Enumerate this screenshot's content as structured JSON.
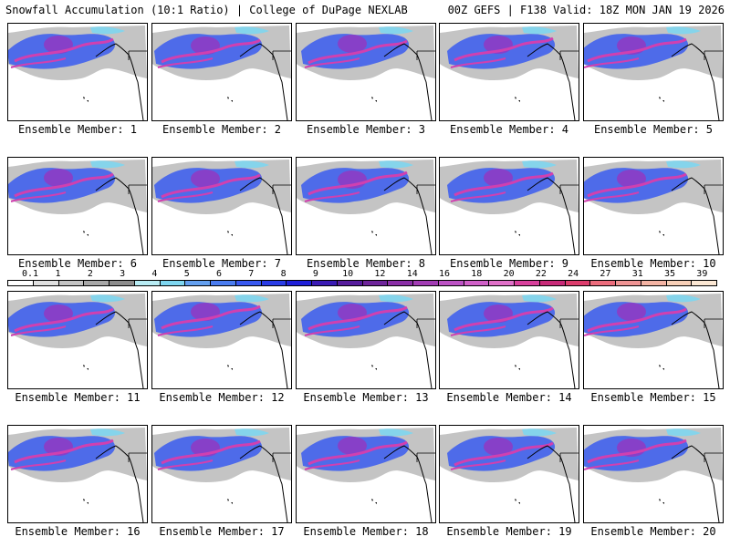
{
  "header": {
    "title": "Snowfall Accumulation (10:1 Ratio) | College of DuPage NEXLAB",
    "run_info": "00Z GEFS | F138 Valid: 18Z MON JAN 19 2026"
  },
  "panels": [
    {
      "label": "Ensemble Member: 1"
    },
    {
      "label": "Ensemble Member: 2"
    },
    {
      "label": "Ensemble Member: 3"
    },
    {
      "label": "Ensemble Member: 4"
    },
    {
      "label": "Ensemble Member: 5"
    },
    {
      "label": "Ensemble Member: 6"
    },
    {
      "label": "Ensemble Member: 7"
    },
    {
      "label": "Ensemble Member: 8"
    },
    {
      "label": "Ensemble Member: 9"
    },
    {
      "label": "Ensemble Member: 10"
    },
    {
      "label": "Ensemble Member: 11"
    },
    {
      "label": "Ensemble Member: 12"
    },
    {
      "label": "Ensemble Member: 13"
    },
    {
      "label": "Ensemble Member: 14"
    },
    {
      "label": "Ensemble Member: 15"
    },
    {
      "label": "Ensemble Member: 16"
    },
    {
      "label": "Ensemble Member: 17"
    },
    {
      "label": "Ensemble Member: 18"
    },
    {
      "label": "Ensemble Member: 19"
    },
    {
      "label": "Ensemble Member: 20"
    }
  ],
  "legend": {
    "ticks": [
      "0.1",
      "1",
      "2",
      "3",
      "4",
      "5",
      "6",
      "7",
      "8",
      "9",
      "10",
      "12",
      "14",
      "16",
      "18",
      "20",
      "22",
      "24",
      "27",
      "31",
      "35",
      "39"
    ],
    "colors": [
      "#ffffff",
      "#e0e0e0",
      "#c4c4c4",
      "#a8a8a8",
      "#8c8c8c",
      "#b8ecf4",
      "#7ed6f0",
      "#64a0f0",
      "#4a7cf0",
      "#3858f0",
      "#2a3ce6",
      "#1f1fd8",
      "#3a1ab4",
      "#561c9c",
      "#6e249a",
      "#8a2ea6",
      "#a23cb4",
      "#bc52c4",
      "#d060c8",
      "#e070c8",
      "#d8409c",
      "#c82a78",
      "#dc3c6c",
      "#ec6c7c",
      "#f09494",
      "#f4b4a4",
      "#f8d0b8",
      "#fce8d4"
    ]
  },
  "colors": {
    "land_gray": "#b0b0b0",
    "snow_blue": "#3a5cf0",
    "snow_purple": "#8e3cc4",
    "snow_magenta": "#d040b0",
    "snow_cyan": "#7ed6f0"
  }
}
